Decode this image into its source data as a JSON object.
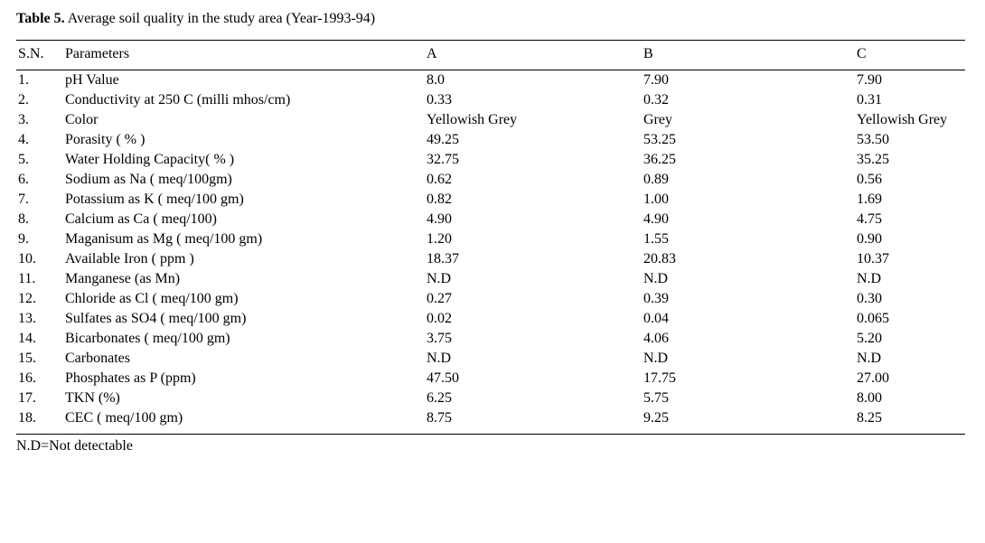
{
  "caption_prefix": "Table 5.",
  "caption_text": " Average soil quality in the study area (Year-1993-94)",
  "footnote": "N.D=Not detectable",
  "columns": {
    "sn": "S.N.",
    "par": "Parameters",
    "a": "A",
    "b": "B",
    "c": "C"
  },
  "rows": [
    {
      "sn": "1.",
      "par": "pH Value",
      "a": "8.0",
      "b": "7.90",
      "c": "7.90"
    },
    {
      "sn": "2.",
      "par": "Conductivity at 250 C (milli mhos/cm)",
      "a": "0.33",
      "b": "0.32",
      "c": "0.31"
    },
    {
      "sn": "3.",
      "par": "Color",
      "a": "Yellowish Grey",
      "b": "Grey",
      "c": "Yellowish Grey"
    },
    {
      "sn": "4.",
      "par": "Porasity ( % )",
      "a": "49.25",
      "b": "53.25",
      "c": "53.50"
    },
    {
      "sn": "5.",
      "par": "Water Holding Capacity( % )",
      "a": "32.75",
      "b": "36.25",
      "c": "35.25"
    },
    {
      "sn": "6.",
      "par": "Sodium as Na  ( meq/100gm)",
      "a": "0.62",
      "b": "0.89",
      "c": "0.56"
    },
    {
      "sn": "7.",
      "par": "Potassium as K  ( meq/100 gm)",
      "a": "0.82",
      "b": "1.00",
      "c": "1.69"
    },
    {
      "sn": "8.",
      "par": "Calcium as Ca ( meq/100)",
      "a": "4.90",
      "b": "4.90",
      "c": "4.75"
    },
    {
      "sn": "9.",
      "par": "Maganisum as Mg  ( meq/100 gm)",
      "a": "1.20",
      "b": "1.55",
      "c": "0.90"
    },
    {
      "sn": "10.",
      "par": "Available  Iron ( ppm )",
      "a": "18.37",
      "b": "20.83",
      "c": "10.37"
    },
    {
      "sn": "11.",
      "par": "Manganese (as Mn)",
      "a": "N.D",
      "b": "N.D",
      "c": "N.D"
    },
    {
      "sn": "12.",
      "par": "Chloride as Cl  ( meq/100 gm)",
      "a": "0.27",
      "b": "0.39",
      "c": "0.30"
    },
    {
      "sn": "13.",
      "par": "Sulfates as SO4    ( meq/100 gm)",
      "a": "0.02",
      "b": "0.04",
      "c": "0.065"
    },
    {
      "sn": "14.",
      "par": "Bicarbonates ( meq/100 gm)",
      "a": "3.75",
      "b": "4.06",
      "c": "5.20"
    },
    {
      "sn": "15.",
      "par": "Carbonates",
      "a": "N.D",
      "b": "N.D",
      "c": "N.D"
    },
    {
      "sn": "16.",
      "par": "Phosphates as P  (ppm)",
      "a": "47.50",
      "b": "17.75",
      "c": "27.00"
    },
    {
      "sn": "17.",
      "par": "TKN (%)",
      "a": "6.25",
      "b": "5.75",
      "c": "8.00"
    },
    {
      "sn": "18.",
      "par": "CEC  ( meq/100 gm)",
      "a": "8.75",
      "b": "9.25",
      "c": "8.25"
    }
  ]
}
